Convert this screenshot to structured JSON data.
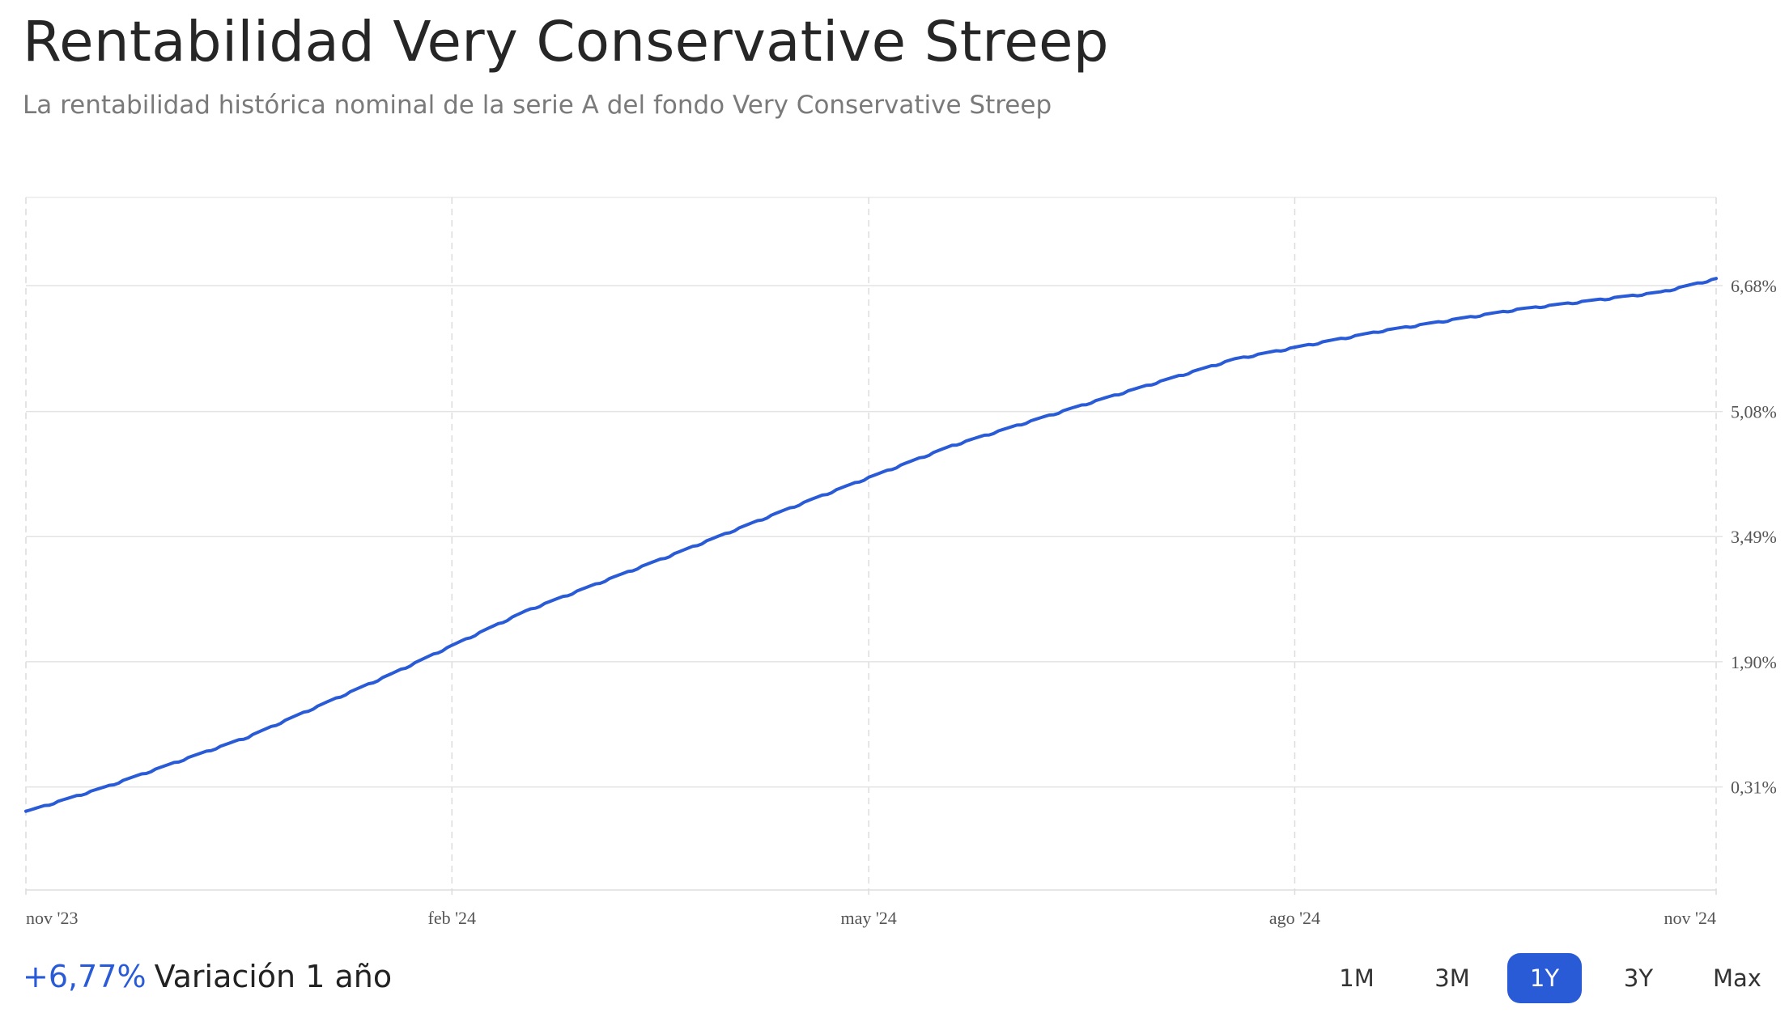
{
  "header": {
    "title": "Rentabilidad Very Conservative Streep",
    "subtitle": "La rentabilidad histórica nominal de la serie A del fondo Very Conservative Streep"
  },
  "footer": {
    "change_value": "+6,77%",
    "change_label": "Variación 1 año"
  },
  "ranges": [
    {
      "label": "1M",
      "active": false
    },
    {
      "label": "3M",
      "active": false
    },
    {
      "label": "1Y",
      "active": true
    },
    {
      "label": "3Y",
      "active": false
    },
    {
      "label": "Max",
      "active": false
    }
  ],
  "colors": {
    "line": "#2a5bd7",
    "accent": "#2a5bd7",
    "grid": "#e3e3e3"
  },
  "chart_data": {
    "type": "line",
    "title": "",
    "xlabel": "",
    "ylabel": "",
    "x_tick_labels": [
      "nov '23",
      "feb '24",
      "may '24",
      "ago '24",
      "nov '24"
    ],
    "x_tick_dates": [
      "2023-11-14",
      "2024-02-14",
      "2024-05-14",
      "2024-08-14",
      "2024-11-13"
    ],
    "y_ticks": [
      0.31,
      1.9,
      3.49,
      5.08,
      6.68
    ],
    "y_tick_labels": [
      "0,31%",
      "1,90%",
      "3,49%",
      "5,08%",
      "6,68%"
    ],
    "ylim": [
      -1.0,
      7.8
    ],
    "axis_position": "right",
    "grid": true,
    "series": [
      {
        "values_unit": "%",
        "points": [
          [
            "2023-11-14",
            0.0
          ],
          [
            "2023-12-01",
            0.31
          ],
          [
            "2024-01-01",
            0.95
          ],
          [
            "2024-02-01",
            1.75
          ],
          [
            "2024-03-01",
            2.55
          ],
          [
            "2024-04-01",
            3.25
          ],
          [
            "2024-05-01",
            3.95
          ],
          [
            "2024-06-01",
            4.65
          ],
          [
            "2024-07-01",
            5.2
          ],
          [
            "2024-08-01",
            5.75
          ],
          [
            "2024-09-01",
            6.1
          ],
          [
            "2024-10-01",
            6.38
          ],
          [
            "2024-11-01",
            6.6
          ],
          [
            "2024-11-13",
            6.77
          ]
        ]
      }
    ]
  }
}
